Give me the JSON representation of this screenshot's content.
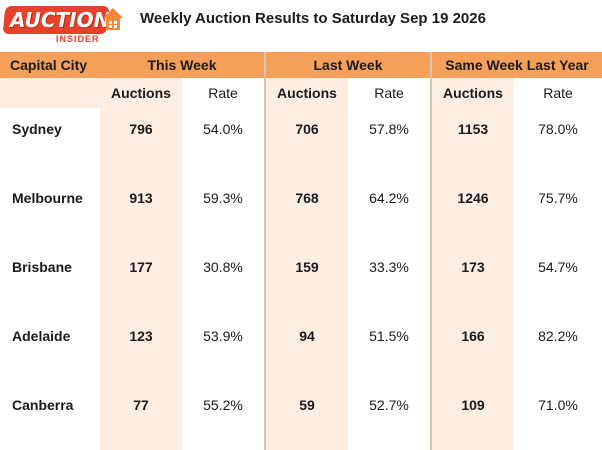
{
  "logo": {
    "word": "AUCTION",
    "sub": "INSIDER",
    "brand_color": "#e8412a"
  },
  "title": "Weekly Auction Results to Saturday Sep 19 2026",
  "chart_data": {
    "type": "table",
    "title": "Weekly Auction Results to Saturday Sep 19 2026",
    "group_headers": [
      "Capital City",
      "This Week",
      "Last Week",
      "Same Week Last Year"
    ],
    "sub_headers": [
      "Auctions",
      "Rate",
      "Auctions",
      "Rate",
      "Auctions",
      "Rate"
    ],
    "rows": [
      {
        "city": "Sydney",
        "cells": [
          "796",
          "54.0%",
          "706",
          "57.8%",
          "1153",
          "78.0%"
        ]
      },
      {
        "city": "Melbourne",
        "cells": [
          "913",
          "59.3%",
          "768",
          "64.2%",
          "1246",
          "75.7%"
        ]
      },
      {
        "city": "Brisbane",
        "cells": [
          "177",
          "30.8%",
          "159",
          "33.3%",
          "173",
          "54.7%"
        ]
      },
      {
        "city": "Adelaide",
        "cells": [
          "123",
          "53.9%",
          "94",
          "51.5%",
          "166",
          "82.2%"
        ]
      },
      {
        "city": "Canberra",
        "cells": [
          "77",
          "55.2%",
          "59",
          "52.7%",
          "109",
          "71.0%"
        ]
      }
    ],
    "colors": {
      "header": "#f5a05a",
      "shade": "#fdeee3"
    }
  }
}
